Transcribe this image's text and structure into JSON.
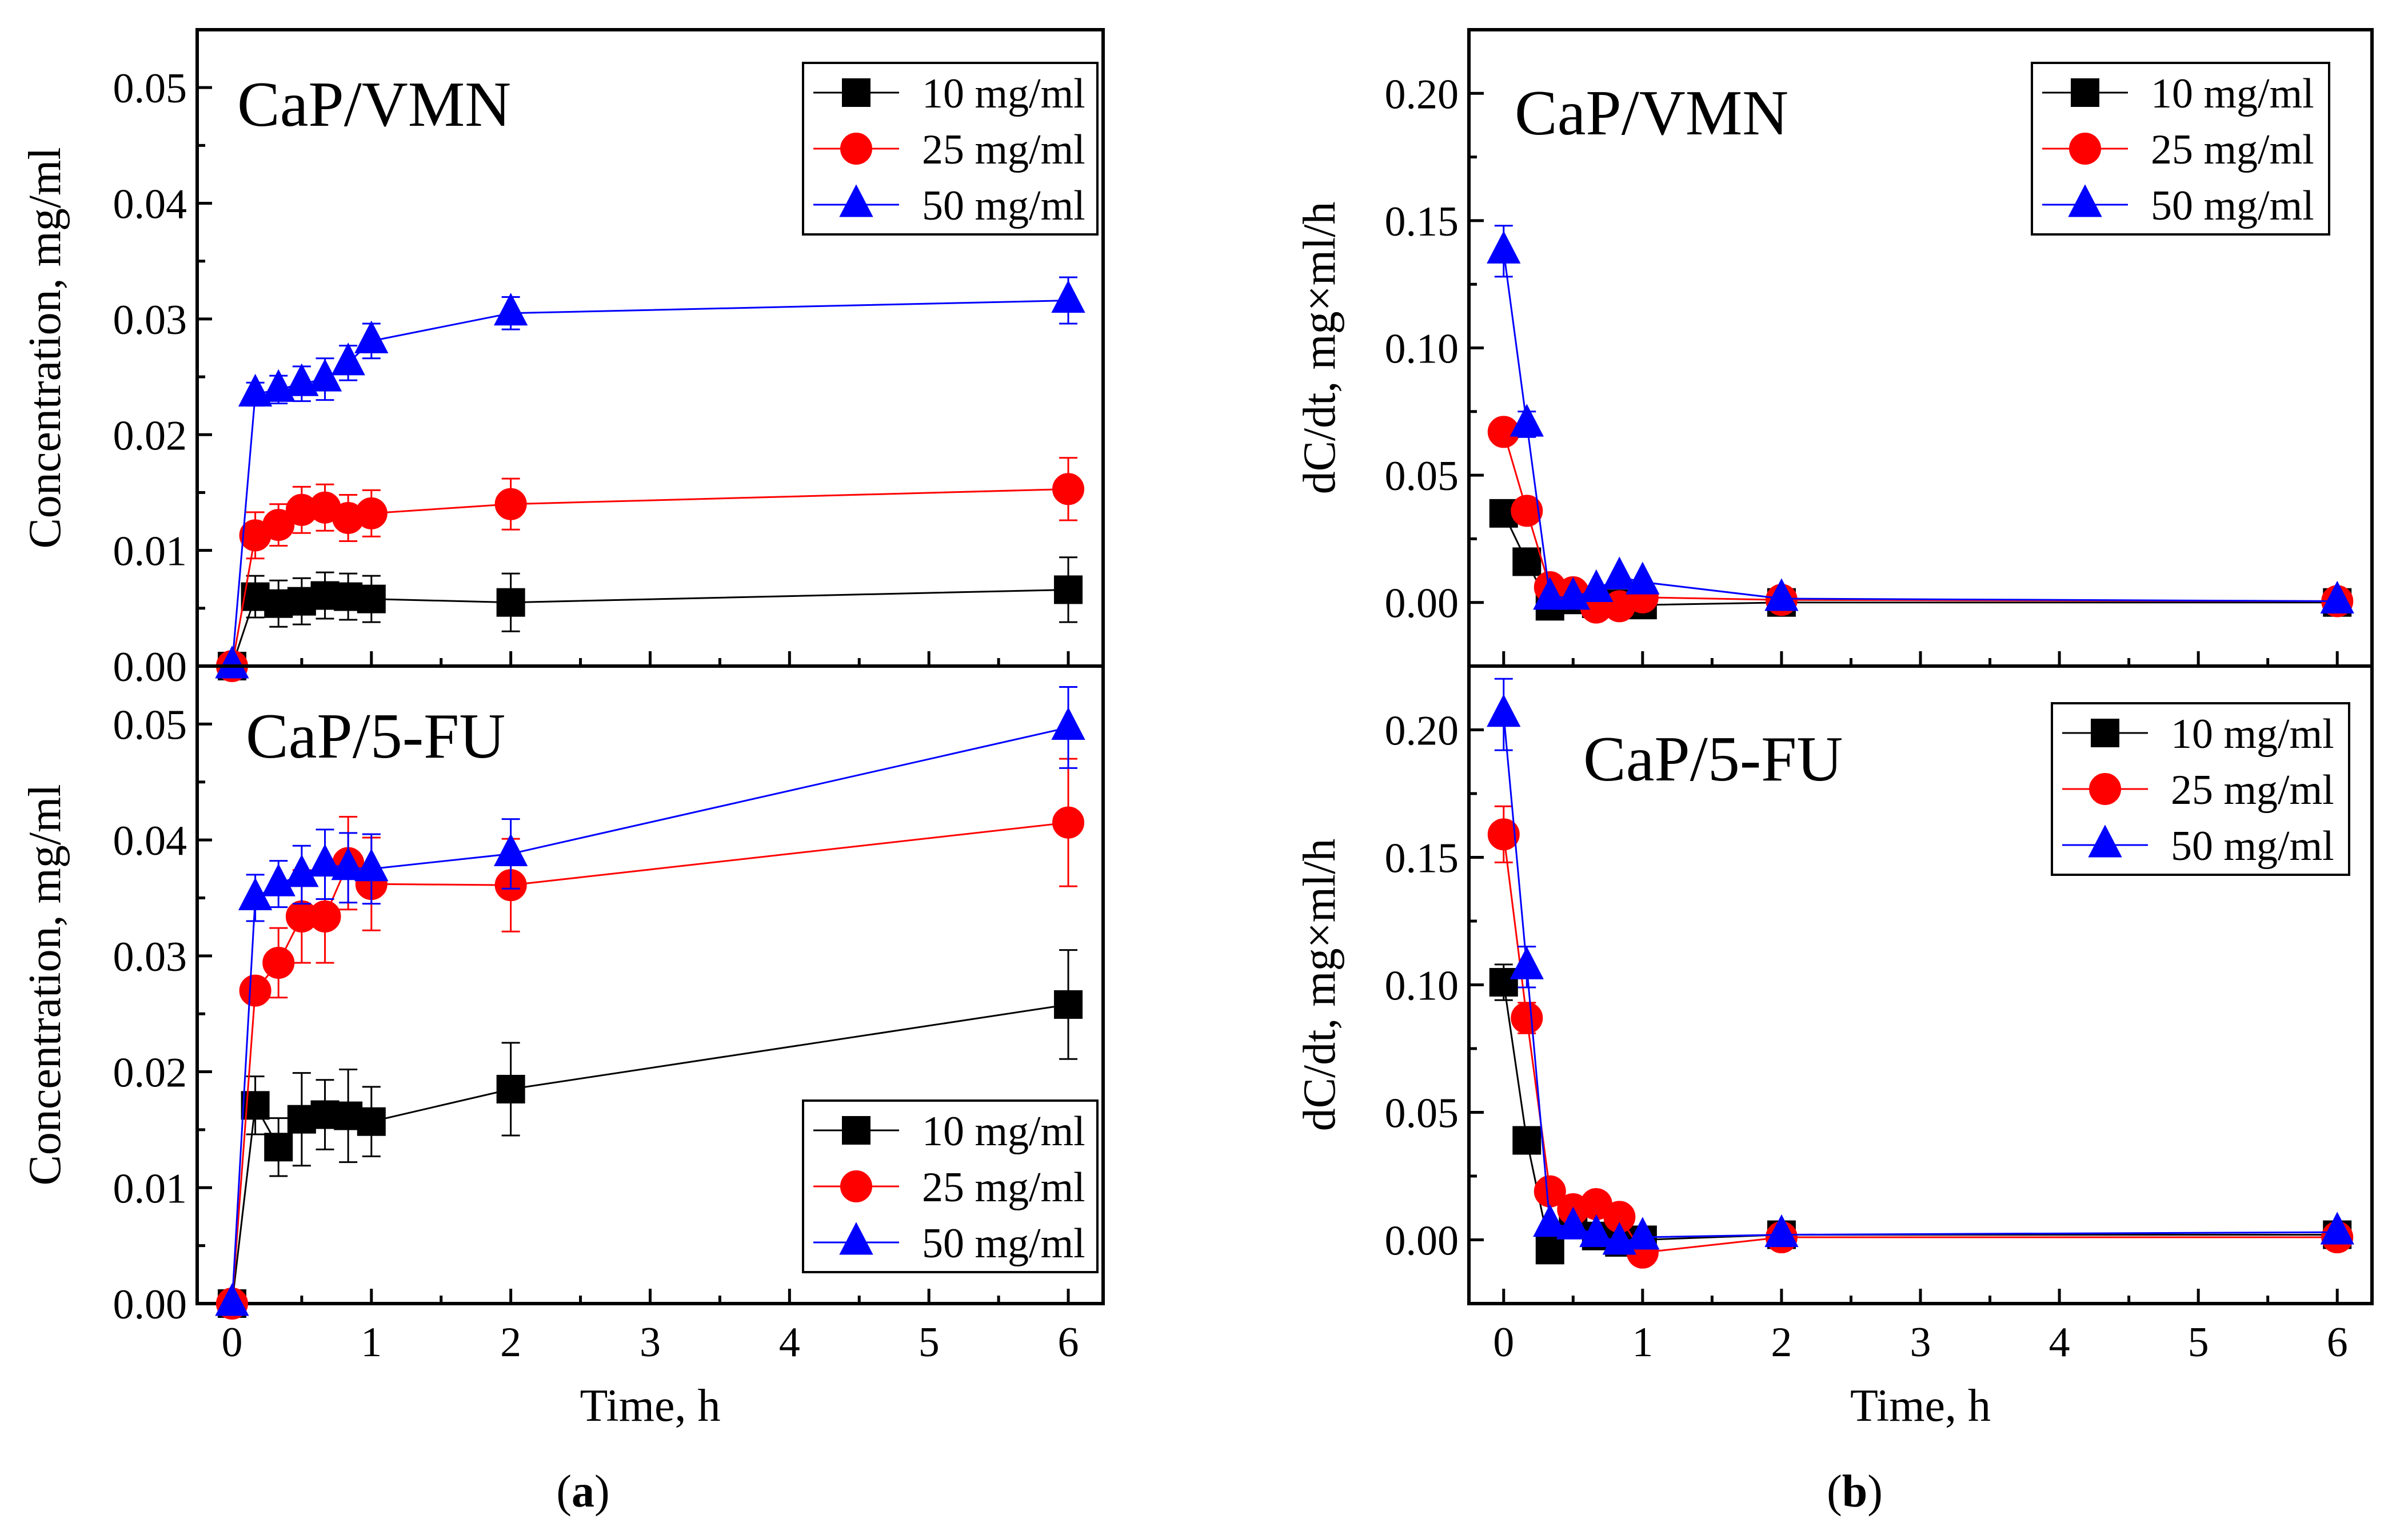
{
  "figure": {
    "caption_a": "a",
    "caption_b": "b"
  },
  "chart_data": [
    {
      "type": "line",
      "panel": "a-top",
      "title": "CaP/VMN",
      "xlabel": "",
      "ylabel": "Concentration, mg/ml",
      "xlim": [
        -0.25,
        6.25
      ],
      "ylim": [
        0,
        0.055
      ],
      "yticks": [
        "0.00",
        "0.01",
        "0.02",
        "0.03",
        "0.04",
        "0.05"
      ],
      "xticks": [],
      "legend_position": "top-right",
      "x": [
        0,
        0.1667,
        0.3333,
        0.5,
        0.6667,
        0.8333,
        1,
        2,
        6
      ],
      "series": [
        {
          "name": "10 mg/ml",
          "color": "#000000",
          "marker": "square",
          "values": [
            0,
            0.006,
            0.0054,
            0.0056,
            0.0061,
            0.006,
            0.0058,
            0.0055,
            0.0066
          ],
          "errors": [
            0,
            0.0018,
            0.002,
            0.002,
            0.002,
            0.002,
            0.002,
            0.0025,
            0.0028
          ]
        },
        {
          "name": "25 mg/ml",
          "color": "#ff0000",
          "marker": "circle",
          "values": [
            0,
            0.0113,
            0.0122,
            0.0135,
            0.0137,
            0.0128,
            0.0132,
            0.014,
            0.0153
          ],
          "errors": [
            0,
            0.002,
            0.0018,
            0.002,
            0.002,
            0.002,
            0.002,
            0.0022,
            0.0027
          ]
        },
        {
          "name": "50 mg/ml",
          "color": "#0000ff",
          "marker": "triangle",
          "values": [
            0,
            0.0235,
            0.0239,
            0.0244,
            0.0248,
            0.0262,
            0.0281,
            0.0305,
            0.0316
          ],
          "errors": [
            0,
            0.001,
            0.0012,
            0.0015,
            0.0018,
            0.0015,
            0.0015,
            0.0014,
            0.002
          ]
        }
      ]
    },
    {
      "type": "line",
      "panel": "a-bottom",
      "title": "CaP/5-FU",
      "xlabel": "Time, h",
      "ylabel": "Concentration, mg/ml",
      "xlim": [
        -0.25,
        6.25
      ],
      "ylim": [
        0,
        0.055
      ],
      "yticks": [
        "0.00",
        "0.01",
        "0.02",
        "0.03",
        "0.04",
        "0.05"
      ],
      "xticks": [
        "0",
        "1",
        "2",
        "3",
        "4",
        "5",
        "6"
      ],
      "legend_position": "bottom-right",
      "x": [
        0,
        0.1667,
        0.3333,
        0.5,
        0.6667,
        0.8333,
        1,
        2,
        6
      ],
      "series": [
        {
          "name": "10 mg/ml",
          "color": "#000000",
          "marker": "square",
          "values": [
            0,
            0.0171,
            0.0135,
            0.0159,
            0.0163,
            0.0162,
            0.0157,
            0.0185,
            0.0258
          ],
          "errors": [
            0,
            0.0025,
            0.0025,
            0.004,
            0.003,
            0.004,
            0.003,
            0.004,
            0.0047
          ]
        },
        {
          "name": "25 mg/ml",
          "color": "#ff0000",
          "marker": "circle",
          "values": [
            0,
            0.027,
            0.0294,
            0.0334,
            0.0334,
            0.038,
            0.0362,
            0.0361,
            0.0415
          ],
          "errors": [
            0,
            0.001,
            0.003,
            0.004,
            0.004,
            0.004,
            0.004,
            0.004,
            0.0055
          ]
        },
        {
          "name": "50 mg/ml",
          "color": "#0000ff",
          "marker": "triangle",
          "values": [
            0,
            0.035,
            0.0362,
            0.037,
            0.0379,
            0.0376,
            0.0375,
            0.0388,
            0.0497
          ],
          "errors": [
            0,
            0.002,
            0.002,
            0.0025,
            0.003,
            0.003,
            0.003,
            0.003,
            0.0035
          ]
        }
      ]
    },
    {
      "type": "line",
      "panel": "b-top",
      "title": "CaP/VMN",
      "xlabel": "",
      "ylabel": "dC/dt, mg×ml/h",
      "xlim": [
        -0.25,
        6.25
      ],
      "ylim": [
        -0.025,
        0.225
      ],
      "yticks": [
        "0.00",
        "0.05",
        "0.10",
        "0.15",
        "0.20"
      ],
      "xticks": [],
      "legend_position": "top-right",
      "x": [
        0,
        0.1667,
        0.3333,
        0.5,
        0.6667,
        0.8333,
        1,
        2,
        6
      ],
      "series": [
        {
          "name": "10 mg/ml",
          "color": "#000000",
          "marker": "square",
          "values": [
            0.035,
            0.016,
            -0.0015,
            0.001,
            -0.0005,
            -0.0005,
            -0.001,
            0.0,
            0.0
          ],
          "errors": [
            0,
            0,
            0,
            0,
            0,
            0,
            0,
            0,
            0
          ]
        },
        {
          "name": "25 mg/ml",
          "color": "#ff0000",
          "marker": "circle",
          "values": [
            0.067,
            0.036,
            0.006,
            0.004,
            -0.002,
            -0.0015,
            0.002,
            0.001,
            0.0005
          ],
          "errors": [
            0.004,
            0,
            0,
            0,
            0,
            0,
            0,
            0,
            0
          ]
        },
        {
          "name": "50 mg/ml",
          "color": "#0000ff",
          "marker": "triangle",
          "values": [
            0.138,
            0.07,
            0.002,
            0.002,
            0.005,
            0.01,
            0.008,
            0.0015,
            0.0005
          ],
          "errors": [
            0.01,
            0.005,
            0,
            0,
            0,
            0,
            0,
            0,
            0
          ]
        }
      ]
    },
    {
      "type": "line",
      "panel": "b-bottom",
      "title": "CaP/5-FU",
      "xlabel": "Time, h",
      "ylabel": "dC/dt, mg×ml/h",
      "xlim": [
        -0.25,
        6.25
      ],
      "ylim": [
        -0.025,
        0.225
      ],
      "yticks": [
        "0.00",
        "0.05",
        "0.10",
        "0.15",
        "0.20"
      ],
      "xticks": [
        "0",
        "1",
        "2",
        "3",
        "4",
        "5",
        "6"
      ],
      "legend_position": "top-right",
      "x": [
        0,
        0.1667,
        0.3333,
        0.5,
        0.6667,
        0.8333,
        1,
        2,
        6
      ],
      "series": [
        {
          "name": "10 mg/ml",
          "color": "#000000",
          "marker": "square",
          "values": [
            0.101,
            0.039,
            -0.004,
            0.007,
            0.0015,
            -0.001,
            0.0,
            0.002,
            0.002
          ],
          "errors": [
            0.007,
            0,
            0,
            0,
            0,
            0,
            0,
            0,
            0
          ]
        },
        {
          "name": "25 mg/ml",
          "color": "#ff0000",
          "marker": "circle",
          "values": [
            0.159,
            0.087,
            0.019,
            0.012,
            0.014,
            0.009,
            -0.005,
            0.001,
            0.001
          ],
          "errors": [
            0.011,
            0.006,
            0,
            0,
            0,
            0,
            0,
            0,
            0
          ]
        },
        {
          "name": "50 mg/ml",
          "color": "#0000ff",
          "marker": "triangle",
          "values": [
            0.206,
            0.107,
            0.006,
            0.005,
            0.002,
            -0.001,
            0.001,
            0.002,
            0.003
          ],
          "errors": [
            0.014,
            0.008,
            0,
            0,
            0,
            0,
            0,
            0,
            0
          ]
        }
      ]
    }
  ]
}
